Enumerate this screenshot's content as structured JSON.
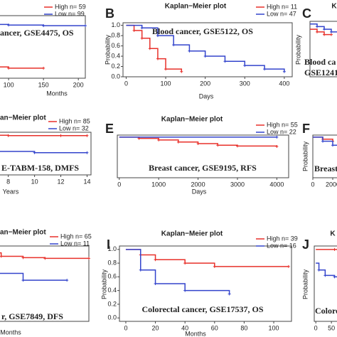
{
  "chart_data": [
    {
      "type": "line",
      "note": "ancer, GSE4475, OS",
      "xlabel": "Months",
      "xlim": [
        0,
        210
      ],
      "ylim": [
        0,
        1
      ],
      "xticks": [
        100,
        150,
        200
      ],
      "series": [
        {
          "name": "High  n= 59",
          "color": "#e8302a",
          "x": [
            0,
            50,
            100,
            150
          ],
          "values": [
            0.2,
            0.18,
            0.16,
            0.16
          ]
        },
        {
          "name": "Low  n= 99",
          "color": "#3344cc",
          "x": [
            0,
            20,
            60,
            100,
            150,
            210
          ],
          "values": [
            0.9,
            0.88,
            0.86,
            0.85,
            0.84,
            0.84
          ]
        }
      ]
    },
    {
      "type": "line",
      "letter": "B",
      "title": "Kaplan−Meier plot",
      "note": "Blood cancer, GSE5122, OS",
      "xlabel": "Days",
      "ylabel": "Probability",
      "xlim": [
        -8,
        420
      ],
      "ylim": [
        0,
        1.05
      ],
      "xticks": [
        0,
        100,
        200,
        300,
        400
      ],
      "yticks": [
        {
          "value": 0,
          "label": "0.0"
        },
        0.2,
        0.4,
        0.6,
        0.8,
        {
          "value": 1,
          "label": "1.0"
        }
      ],
      "series": [
        {
          "name": "High  n= 11",
          "color": "#e8302a",
          "x": [
            0,
            20,
            40,
            60,
            80,
            100,
            140
          ],
          "values": [
            1,
            0.9,
            0.75,
            0.55,
            0.35,
            0.15,
            0.1
          ]
        },
        {
          "name": "Low  n= 47",
          "color": "#3344cc",
          "x": [
            0,
            40,
            80,
            120,
            160,
            200,
            250,
            300,
            350,
            400
          ],
          "values": [
            1,
            0.95,
            0.8,
            0.62,
            0.5,
            0.4,
            0.3,
            0.22,
            0.15,
            0.1
          ]
        }
      ]
    },
    {
      "type": "line",
      "letter": "C",
      "title": "K",
      "note": [
        "Blood ca",
        "GSE1241"
      ],
      "ylabel": "Probability",
      "xlim": [
        0,
        100
      ],
      "ylim": [
        0,
        1.05
      ],
      "series": [
        {
          "color": "#e8302a",
          "x": [
            0,
            10,
            20,
            30
          ],
          "values": [
            0.9,
            0.85,
            0.8,
            0.8
          ]
        },
        {
          "color": "#3344cc",
          "x": [
            0,
            10,
            20,
            30,
            40
          ],
          "values": [
            1,
            0.95,
            0.9,
            0.85,
            0.8
          ]
        }
      ]
    },
    {
      "type": "line",
      "title": "an−Meier plot",
      "note": "E-TABM-158, DMFS",
      "xlabel": "Years",
      "xlim": [
        0,
        14.3
      ],
      "ylim": [
        0,
        1
      ],
      "xticks": [
        8,
        10,
        12,
        14
      ],
      "series": [
        {
          "name": "High  n= 85",
          "color": "#e8302a",
          "x": [
            0,
            4,
            8,
            12,
            14
          ],
          "values": [
            0.95,
            0.93,
            0.92,
            0.92,
            0.92
          ]
        },
        {
          "name": "Low  n= 32",
          "color": "#3344cc",
          "x": [
            0,
            6,
            10,
            14
          ],
          "values": [
            0.6,
            0.55,
            0.52,
            0.52
          ]
        }
      ]
    },
    {
      "type": "line",
      "letter": "E",
      "title": "Kaplan−Meier plot",
      "note": "Breast cancer, GSE9195, RFS",
      "xlabel": "Days",
      "xlim": [
        -50,
        4300
      ],
      "ylim": [
        0,
        1.05
      ],
      "xticks": [
        0,
        1000,
        2000,
        3000,
        4000
      ],
      "series": [
        {
          "name": "High  n= 55",
          "color": "#e8302a",
          "x": [
            0,
            500,
            1000,
            1500,
            2000,
            2500,
            3000,
            4000
          ],
          "values": [
            1,
            0.97,
            0.93,
            0.88,
            0.84,
            0.8,
            0.78,
            0.77
          ]
        },
        {
          "name": "Low  n= 22",
          "color": "#3344cc",
          "x": [
            0,
            4000
          ],
          "values": [
            1,
            1
          ]
        }
      ]
    },
    {
      "type": "line",
      "letter": "F",
      "note": "Breast ca",
      "ylabel": "Probability",
      "xlim": [
        0,
        10000
      ],
      "ylim": [
        0,
        1.05
      ],
      "xticks": [
        0,
        2000
      ],
      "series": [
        {
          "color": "#e8302a",
          "x": [
            0,
            1000,
            2000
          ],
          "values": [
            1,
            0.95,
            0.9
          ]
        },
        {
          "color": "#3344cc",
          "x": [
            0,
            1000,
            2000,
            3000
          ],
          "values": [
            1,
            0.9,
            0.8,
            0.75
          ]
        }
      ]
    },
    {
      "type": "line",
      "title": "an−Meier plot",
      "note": "r, GSE7849, DFS",
      "xlabel": "Months",
      "xlim": [
        0,
        120
      ],
      "ylim": [
        -0.05,
        1.05
      ],
      "series": [
        {
          "name": "High  n= 65",
          "color": "#e8302a",
          "x": [
            0,
            20,
            40,
            60,
            80,
            120
          ],
          "values": [
            1,
            0.95,
            0.9,
            0.88,
            0.87,
            0.87
          ]
        },
        {
          "name": "Low  n= 11",
          "color": "#3344cc",
          "x": [
            0,
            15,
            30,
            60,
            100
          ],
          "values": [
            1,
            0.8,
            0.65,
            0.55,
            0.55
          ]
        }
      ]
    },
    {
      "type": "line",
      "letter": "I",
      "title": "Kaplan−Meier plot",
      "note": "Colorectal cancer, GSE17537, OS",
      "xlabel": "Months",
      "ylabel": "Probability",
      "xlim": [
        -4.3,
        112
      ],
      "ylim": [
        -0.05,
        1.05
      ],
      "xticks": [
        0,
        20,
        40,
        60,
        80,
        100
      ],
      "yticks": [
        {
          "value": 0,
          "label": "0.0"
        },
        0.2,
        0.4,
        0.6,
        0.8,
        {
          "value": 1,
          "label": "1.0"
        }
      ],
      "series": [
        {
          "name": "High  n= 39",
          "color": "#e8302a",
          "x": [
            0,
            10,
            20,
            40,
            60,
            110
          ],
          "values": [
            1,
            0.92,
            0.85,
            0.8,
            0.75,
            0.75
          ]
        },
        {
          "name": "Low  n= 16",
          "color": "#3344cc",
          "x": [
            0,
            10,
            20,
            40,
            70
          ],
          "values": [
            1,
            0.7,
            0.5,
            0.4,
            0.35
          ]
        }
      ]
    },
    {
      "type": "line",
      "letter": "J",
      "title": "K",
      "note": "Colorecta",
      "ylabel": "Probability",
      "xlim": [
        -5,
        200
      ],
      "ylim": [
        -0.05,
        1.05
      ],
      "xticks": [
        0,
        50
      ],
      "series": [
        {
          "color": "#e8302a",
          "x": [
            0,
            60,
            120
          ],
          "values": [
            1,
            1,
            1
          ]
        },
        {
          "color": "#3344cc",
          "x": [
            0,
            10,
            30,
            60,
            120
          ],
          "values": [
            0.8,
            0.7,
            0.62,
            0.6,
            0.6
          ]
        }
      ]
    }
  ]
}
